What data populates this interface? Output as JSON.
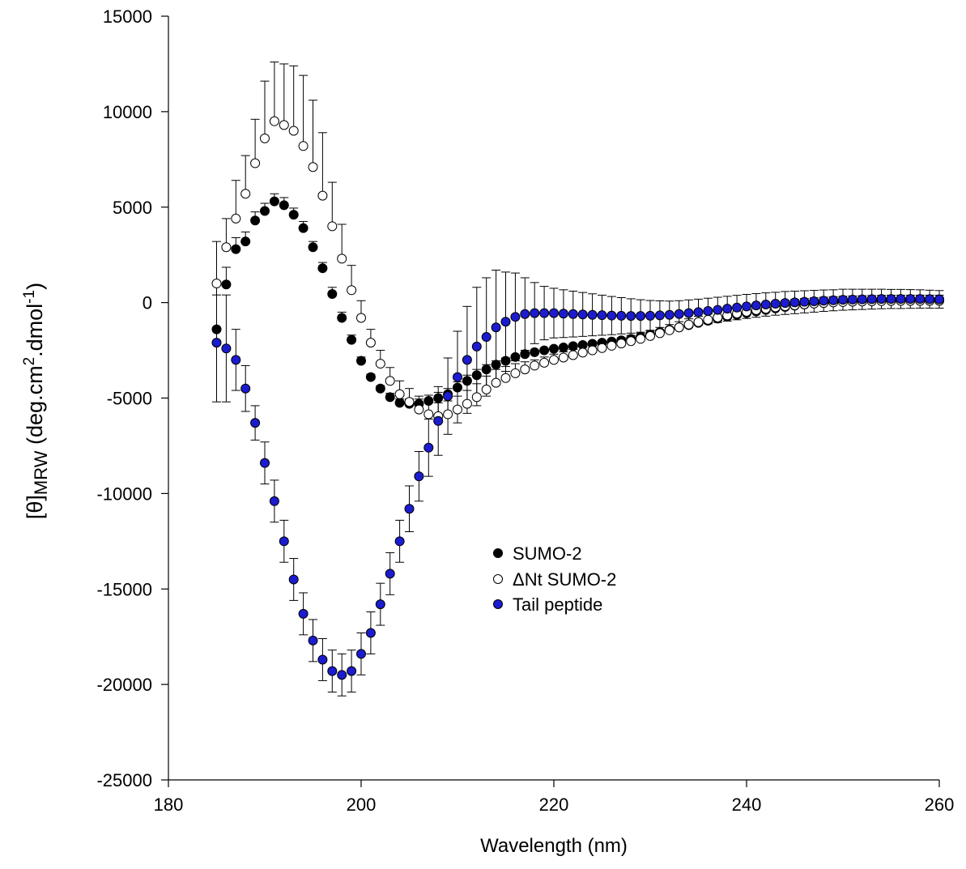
{
  "chart_data": {
    "type": "scatter",
    "title": "",
    "xlabel": "Wavelength (nm)",
    "ylabel_prefix": "[θ]",
    "ylabel_sub": "MRW",
    "ylabel_units_1": " (deg.cm",
    "ylabel_sup_1": "2",
    "ylabel_units_2": ".dmol",
    "ylabel_sup_2": "-1",
    "ylabel_units_3": ")",
    "xlim": [
      180,
      260
    ],
    "ylim": [
      -25000,
      15000
    ],
    "xticks": [
      180,
      200,
      220,
      240,
      260
    ],
    "yticks": [
      -25000,
      -20000,
      -15000,
      -10000,
      -5000,
      0,
      5000,
      10000,
      15000
    ],
    "grid": false,
    "legend_position": "center",
    "series": [
      {
        "name": "SUMO-2",
        "marker_fill": "#000000",
        "marker_stroke": "#000000",
        "error_direction": "up",
        "x": [
          185,
          186,
          187,
          188,
          189,
          190,
          191,
          192,
          193,
          194,
          195,
          196,
          197,
          198,
          199,
          200,
          201,
          202,
          203,
          204,
          205,
          206,
          207,
          208,
          209,
          210,
          211,
          212,
          213,
          214,
          215,
          216,
          217,
          218,
          219,
          220,
          221,
          222,
          223,
          224,
          225,
          226,
          227,
          228,
          229,
          230,
          231,
          232,
          233,
          234,
          235,
          236,
          237,
          238,
          239,
          240,
          241,
          242,
          243,
          244,
          245,
          246,
          247,
          248,
          249,
          250,
          251,
          252,
          253,
          254,
          255,
          256,
          257,
          258,
          259,
          260
        ],
        "y": [
          -1400,
          950,
          2800,
          3200,
          4300,
          4800,
          5300,
          5100,
          4600,
          3900,
          2900,
          1800,
          450,
          -800,
          -1950,
          -3050,
          -3900,
          -4500,
          -4950,
          -5250,
          -5300,
          -5300,
          -5150,
          -5000,
          -4800,
          -4450,
          -4100,
          -3800,
          -3500,
          -3250,
          -3050,
          -2850,
          -2700,
          -2600,
          -2500,
          -2420,
          -2350,
          -2280,
          -2220,
          -2160,
          -2100,
          -2040,
          -1980,
          -1900,
          -1800,
          -1680,
          -1550,
          -1420,
          -1300,
          -1180,
          -1060,
          -950,
          -840,
          -740,
          -640,
          -550,
          -460,
          -380,
          -300,
          -230,
          -160,
          -100,
          -50,
          0,
          40,
          70,
          100,
          120,
          140,
          155,
          165,
          170,
          175,
          175,
          175,
          170
        ],
        "err": [
          1800,
          900,
          600,
          500,
          450,
          400,
          400,
          400,
          350,
          350,
          300,
          300,
          350,
          300,
          250,
          200,
          150,
          150,
          200,
          200,
          250,
          250,
          300,
          300,
          300,
          300,
          300,
          300,
          250,
          200,
          150,
          100,
          100,
          100,
          100,
          100,
          100,
          100,
          100,
          100,
          100,
          100,
          100,
          100,
          100,
          100,
          100,
          100,
          100,
          100,
          100,
          100,
          100,
          100,
          100,
          100,
          100,
          100,
          100,
          100,
          100,
          100,
          100,
          100,
          100,
          100,
          100,
          100,
          100,
          100,
          100,
          100,
          100,
          100,
          100,
          100
        ]
      },
      {
        "name": "ΔNt SUMO-2",
        "marker_fill": "#ffffff",
        "marker_stroke": "#000000",
        "error_direction": "up",
        "x": [
          185,
          186,
          187,
          188,
          189,
          190,
          191,
          192,
          193,
          194,
          195,
          196,
          197,
          198,
          199,
          200,
          201,
          202,
          203,
          204,
          205,
          206,
          207,
          208,
          209,
          210,
          211,
          212,
          213,
          214,
          215,
          216,
          217,
          218,
          219,
          220,
          221,
          222,
          223,
          224,
          225,
          226,
          227,
          228,
          229,
          230,
          231,
          232,
          233,
          234,
          235,
          236,
          237,
          238,
          239,
          240,
          241,
          242,
          243,
          244,
          245,
          246,
          247,
          248,
          249,
          250,
          251,
          252,
          253,
          254,
          255,
          256,
          257,
          258,
          259,
          260
        ],
        "y": [
          1000,
          2900,
          4400,
          5700,
          7300,
          8600,
          9500,
          9300,
          9000,
          8200,
          7100,
          5600,
          4000,
          2300,
          650,
          -800,
          -2100,
          -3200,
          -4100,
          -4800,
          -5200,
          -5600,
          -5850,
          -5950,
          -5850,
          -5600,
          -5300,
          -4950,
          -4550,
          -4200,
          -3950,
          -3700,
          -3500,
          -3300,
          -3150,
          -3000,
          -2880,
          -2750,
          -2620,
          -2500,
          -2380,
          -2260,
          -2140,
          -2020,
          -1900,
          -1750,
          -1600,
          -1450,
          -1300,
          -1150,
          -1020,
          -900,
          -780,
          -670,
          -570,
          -480,
          -390,
          -320,
          -250,
          -190,
          -140,
          -90,
          -50,
          -20,
          10,
          30,
          50,
          60,
          70,
          80,
          85,
          90,
          90,
          90,
          90,
          90
        ],
        "err": [
          2200,
          1500,
          2000,
          2000,
          2300,
          3000,
          3100,
          3200,
          3400,
          3700,
          3500,
          3300,
          2300,
          1800,
          1300,
          900,
          700,
          700,
          700,
          700,
          700,
          700,
          700,
          700,
          700,
          700,
          700,
          700,
          700,
          700,
          600,
          500,
          400,
          300,
          300,
          300,
          300,
          300,
          300,
          300,
          300,
          300,
          300,
          300,
          300,
          300,
          300,
          300,
          300,
          300,
          300,
          300,
          300,
          300,
          300,
          300,
          300,
          300,
          300,
          300,
          300,
          300,
          300,
          300,
          300,
          300,
          300,
          300,
          300,
          300,
          300,
          300,
          300,
          300,
          300,
          300
        ]
      },
      {
        "name": "Tail peptide",
        "marker_fill": "#1c1ccf",
        "marker_stroke": "#000000",
        "error_direction": "both",
        "x": [
          185,
          186,
          187,
          188,
          189,
          190,
          191,
          192,
          193,
          194,
          195,
          196,
          197,
          198,
          199,
          200,
          201,
          202,
          203,
          204,
          205,
          206,
          207,
          208,
          209,
          210,
          211,
          212,
          213,
          214,
          215,
          216,
          217,
          218,
          219,
          220,
          221,
          222,
          223,
          224,
          225,
          226,
          227,
          228,
          229,
          230,
          231,
          232,
          233,
          234,
          235,
          236,
          237,
          238,
          239,
          240,
          241,
          242,
          243,
          244,
          245,
          246,
          247,
          248,
          249,
          250,
          251,
          252,
          253,
          254,
          255,
          256,
          257,
          258,
          259,
          260
        ],
        "y": [
          -2100,
          -2400,
          -3000,
          -4500,
          -6300,
          -8400,
          -10400,
          -12500,
          -14500,
          -16300,
          -17700,
          -18700,
          -19300,
          -19500,
          -19300,
          -18400,
          -17300,
          -15800,
          -14200,
          -12500,
          -10800,
          -9100,
          -7600,
          -6200,
          -4900,
          -3900,
          -3000,
          -2300,
          -1800,
          -1300,
          -1000,
          -750,
          -600,
          -550,
          -550,
          -550,
          -580,
          -600,
          -620,
          -640,
          -660,
          -680,
          -690,
          -700,
          -700,
          -690,
          -670,
          -640,
          -600,
          -550,
          -500,
          -440,
          -380,
          -320,
          -260,
          -200,
          -150,
          -100,
          -60,
          -20,
          10,
          40,
          70,
          100,
          120,
          150,
          160,
          170,
          180,
          190,
          190,
          190,
          190,
          190,
          180,
          170
        ],
        "err": [
          3100,
          2800,
          1600,
          1200,
          900,
          1100,
          1100,
          1100,
          1100,
          1100,
          1100,
          1100,
          1100,
          1100,
          1100,
          1100,
          1100,
          1100,
          1100,
          1100,
          1200,
          1300,
          1500,
          1800,
          2000,
          2400,
          2800,
          3100,
          3100,
          3000,
          2600,
          2300,
          1900,
          1600,
          1400,
          1300,
          1250,
          1200,
          1150,
          1100,
          1050,
          1000,
          950,
          900,
          850,
          800,
          760,
          720,
          700,
          690,
          680,
          670,
          660,
          650,
          640,
          630,
          620,
          610,
          600,
          600,
          590,
          580,
          570,
          560,
          550,
          550,
          540,
          530,
          520,
          510,
          500,
          500,
          490,
          480,
          470,
          460
        ]
      }
    ]
  }
}
